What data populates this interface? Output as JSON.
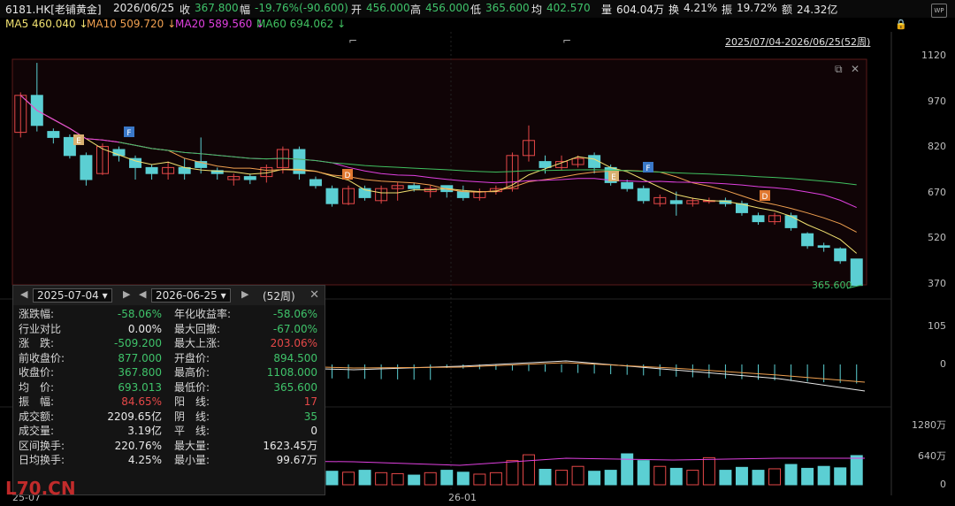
{
  "header": {
    "symbol": "6181.HK[老铺黄金]",
    "date": "2026/06/25",
    "close_label": "收",
    "close": "367.800",
    "change_label": "幅",
    "change": "-19.76%(-90.600)",
    "open_label": "开",
    "open": "456.000",
    "high_label": "高",
    "high": "456.000",
    "low_label": "低",
    "low": "365.600",
    "avg_label": "均",
    "avg": "402.570",
    "vol_label": "量",
    "vol": "604.04万",
    "turnover_label": "换",
    "turnover": "4.21%",
    "amp_label": "振",
    "amp": "19.72%",
    "amount_label": "额",
    "amount": "24.32亿"
  },
  "ma": {
    "ma5": "MA5 460.040 ↓",
    "ma10": "MA10 509.720 ↓",
    "ma20": "MA20 589.560 ↓",
    "ma60": "MA60 694.062 ↓",
    "range": "2025/07/04-2026/06/25(52周)"
  },
  "colors": {
    "up": "#e54848",
    "down": "#5bcfd3",
    "ma5": "#f0e070",
    "ma10": "#f0a050",
    "ma20": "#e040e0",
    "ma60": "#40c060"
  },
  "axis": {
    "price": [
      "1120",
      "970",
      "820",
      "670",
      "520",
      "370"
    ],
    "macd": [
      "105",
      "0"
    ],
    "volume": [
      "1280万",
      "640万",
      "0"
    ],
    "x": [
      "25-07",
      "26-01"
    ]
  },
  "last_price_tag": "365.600",
  "markers": [
    "F",
    "E",
    "D",
    "E",
    "F",
    "D"
  ],
  "stats": {
    "start_date": "2025-07-04",
    "end_date": "2026-06-25",
    "weeks": "(52周)",
    "left": [
      {
        "label": "涨跌幅:",
        "value": "-58.06%",
        "color": "g"
      },
      {
        "label": "行业对比",
        "value": "0.00%",
        "color": "w"
      },
      {
        "label": "涨　跌:",
        "value": "-509.200",
        "color": "g"
      },
      {
        "label": "前收盘价:",
        "value": "877.000",
        "color": "g"
      },
      {
        "label": "收盘价:",
        "value": "367.800",
        "color": "g"
      },
      {
        "label": "均　价:",
        "value": "693.013",
        "color": "g"
      },
      {
        "label": "振　幅:",
        "value": "84.65%",
        "color": "r"
      },
      {
        "label": "成交额:",
        "value": "2209.65亿",
        "color": "w"
      },
      {
        "label": "成交量:",
        "value": "3.19亿",
        "color": "w"
      },
      {
        "label": "区间换手:",
        "value": "220.76%",
        "color": "w"
      },
      {
        "label": "日均换手:",
        "value": "4.25%",
        "color": "w"
      }
    ],
    "right": [
      {
        "label": "年化收益率:",
        "value": "-58.06%",
        "color": "g"
      },
      {
        "label": "最大回撤:",
        "value": "-67.00%",
        "color": "g"
      },
      {
        "label": "最大上涨:",
        "value": "203.06%",
        "color": "r"
      },
      {
        "label": "开盘价:",
        "value": "894.500",
        "color": "g"
      },
      {
        "label": "最高价:",
        "value": "1108.000",
        "color": "g"
      },
      {
        "label": "最低价:",
        "value": "365.600",
        "color": "g"
      },
      {
        "label": "阳　线:",
        "value": "17",
        "color": "r"
      },
      {
        "label": "阴　线:",
        "value": "35",
        "color": "g"
      },
      {
        "label": "平　线:",
        "value": "0",
        "color": "w"
      },
      {
        "label": "最大量:",
        "value": "1623.45万",
        "color": "w"
      },
      {
        "label": "最小量:",
        "value": "99.67万",
        "color": "w"
      }
    ]
  },
  "watermark": "L70.CN"
}
